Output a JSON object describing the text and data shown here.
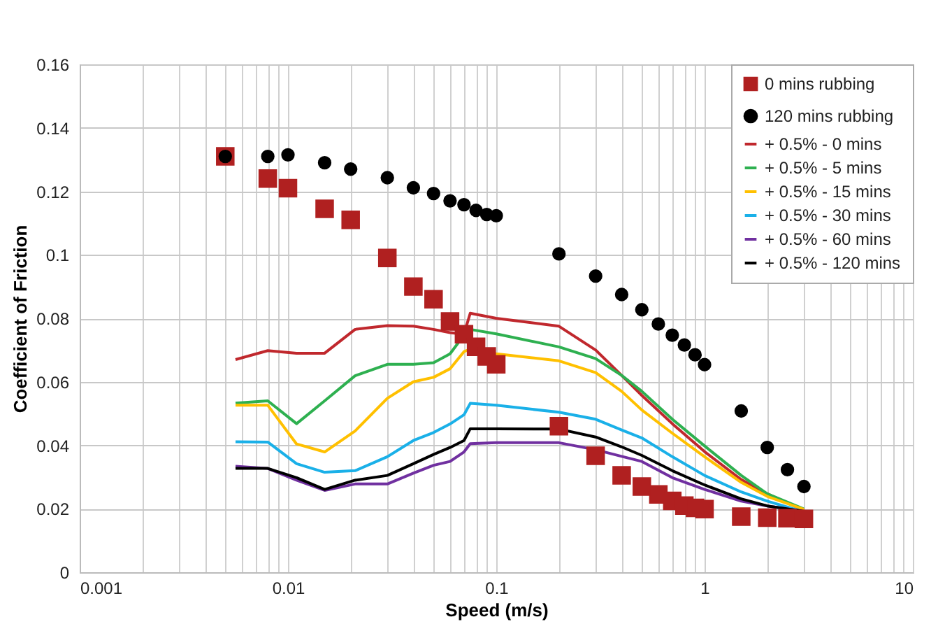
{
  "chart_data": {
    "type": "line",
    "xlabel": "Speed (m/s)",
    "ylabel": "Coefficient of Friction",
    "log": "x",
    "grid": true,
    "legend": "top right",
    "xlim": [
      0.001,
      10
    ],
    "xticks": [
      0.001,
      0.01,
      0.1,
      1,
      10
    ],
    "ylim": [
      0,
      0.16
    ],
    "yticks": [
      0,
      0.02,
      0.04,
      0.06,
      0.08,
      0.1,
      0.12,
      0.14,
      0.16
    ],
    "series": [
      {
        "name": "0 mins rubbing",
        "type": "scatter",
        "marker": "square",
        "color": "#b02020",
        "x": [
          0.005,
          0.008,
          0.01,
          0.015,
          0.02,
          0.03,
          0.04,
          0.05,
          0.06,
          0.07,
          0.08,
          0.09,
          0.1,
          0.2,
          0.3,
          0.4,
          0.5,
          0.6,
          0.7,
          0.8,
          0.9,
          1,
          1.5,
          2,
          2.5,
          3
        ],
        "values": [
          0.131,
          0.124,
          0.121,
          0.1145,
          0.111,
          0.099,
          0.09,
          0.086,
          0.079,
          0.075,
          0.071,
          0.068,
          0.0655,
          0.046,
          0.0367,
          0.0305,
          0.027,
          0.0245,
          0.0225,
          0.021,
          0.0203,
          0.0199,
          0.0175,
          0.0172,
          0.017,
          0.0168
        ]
      },
      {
        "name": "120 mins rubbing",
        "type": "scatter",
        "marker": "circle",
        "color": "#000000",
        "x": [
          0.005,
          0.008,
          0.01,
          0.015,
          0.02,
          0.03,
          0.04,
          0.05,
          0.06,
          0.07,
          0.08,
          0.09,
          0.1,
          0.2,
          0.3,
          0.4,
          0.5,
          0.6,
          0.7,
          0.8,
          0.9,
          1,
          1.5,
          2,
          2.5,
          3
        ],
        "values": [
          0.131,
          0.131,
          0.1315,
          0.129,
          0.127,
          0.1243,
          0.1211,
          0.1193,
          0.117,
          0.1158,
          0.114,
          0.1127,
          0.1123,
          0.1003,
          0.0933,
          0.0875,
          0.0827,
          0.0782,
          0.0747,
          0.0716,
          0.0685,
          0.0654,
          0.0508,
          0.0393,
          0.0323,
          0.027
        ]
      },
      {
        "name": "+ 0.5% - 0 mins",
        "marker": "none",
        "color": "#c0282d",
        "x": [
          0.0056,
          0.008,
          0.011,
          0.015,
          0.021,
          0.03,
          0.04,
          0.05,
          0.06,
          0.07,
          0.075,
          0.1,
          0.2,
          0.3,
          0.4,
          0.5,
          0.7,
          1,
          1.5,
          2,
          3
        ],
        "values": [
          0.067,
          0.0698,
          0.069,
          0.069,
          0.0765,
          0.0777,
          0.0775,
          0.0765,
          0.0755,
          0.075,
          0.0816,
          0.08,
          0.0775,
          0.07,
          0.062,
          0.0557,
          0.0468,
          0.038,
          0.0292,
          0.0247,
          0.0195
        ]
      },
      {
        "name": "+ 0.5% - 5 mins",
        "marker": "none",
        "color": "#2eb050",
        "x": [
          0.0056,
          0.008,
          0.011,
          0.015,
          0.021,
          0.03,
          0.04,
          0.05,
          0.06,
          0.07,
          0.075,
          0.1,
          0.2,
          0.3,
          0.4,
          0.5,
          0.7,
          1,
          1.5,
          2,
          3
        ],
        "values": [
          0.0533,
          0.054,
          0.0468,
          0.054,
          0.0619,
          0.0655,
          0.0655,
          0.066,
          0.0688,
          0.0747,
          0.0765,
          0.0751,
          0.071,
          0.0673,
          0.062,
          0.057,
          0.0482,
          0.0398,
          0.0305,
          0.0247,
          0.0199
        ]
      },
      {
        "name": "+ 0.5% - 15 mins",
        "marker": "none",
        "color": "#ffc000",
        "x": [
          0.0056,
          0.008,
          0.011,
          0.015,
          0.021,
          0.03,
          0.04,
          0.05,
          0.06,
          0.07,
          0.075,
          0.1,
          0.2,
          0.3,
          0.4,
          0.5,
          0.7,
          1,
          1.5,
          2,
          3
        ],
        "values": [
          0.0526,
          0.0526,
          0.0404,
          0.0379,
          0.0445,
          0.0548,
          0.06,
          0.0614,
          0.0641,
          0.0695,
          0.0703,
          0.0688,
          0.0666,
          0.0629,
          0.057,
          0.0511,
          0.0438,
          0.0364,
          0.0283,
          0.0239,
          0.0198
        ]
      },
      {
        "name": "+ 0.5% - 30 mins",
        "marker": "none",
        "color": "#1ab0e8",
        "x": [
          0.0056,
          0.008,
          0.011,
          0.015,
          0.021,
          0.03,
          0.04,
          0.05,
          0.06,
          0.07,
          0.075,
          0.1,
          0.2,
          0.3,
          0.4,
          0.5,
          0.7,
          1,
          1.5,
          2,
          3
        ],
        "values": [
          0.0411,
          0.041,
          0.0342,
          0.0315,
          0.032,
          0.0364,
          0.0415,
          0.044,
          0.0467,
          0.0496,
          0.0532,
          0.0526,
          0.0504,
          0.0482,
          0.0448,
          0.0423,
          0.0364,
          0.0305,
          0.0253,
          0.0224,
          0.019
        ]
      },
      {
        "name": "+ 0.5% - 60 mins",
        "marker": "none",
        "color": "#7030a0",
        "x": [
          0.0056,
          0.008,
          0.011,
          0.015,
          0.021,
          0.03,
          0.04,
          0.05,
          0.06,
          0.07,
          0.075,
          0.1,
          0.2,
          0.3,
          0.4,
          0.5,
          0.7,
          1,
          1.5,
          2,
          3
        ],
        "values": [
          0.0334,
          0.0327,
          0.029,
          0.0258,
          0.0278,
          0.0278,
          0.0312,
          0.0337,
          0.0349,
          0.0379,
          0.0405,
          0.0408,
          0.0408,
          0.0386,
          0.0365,
          0.0349,
          0.0298,
          0.0261,
          0.0224,
          0.0209,
          0.0192
        ]
      },
      {
        "name": "+ 0.5% - 120 mins",
        "marker": "none",
        "color": "#000000",
        "x": [
          0.0056,
          0.008,
          0.011,
          0.015,
          0.021,
          0.03,
          0.04,
          0.05,
          0.06,
          0.07,
          0.075,
          0.1,
          0.2,
          0.3,
          0.4,
          0.5,
          0.7,
          1,
          1.5,
          2,
          3
        ],
        "values": [
          0.0327,
          0.0327,
          0.0298,
          0.0261,
          0.029,
          0.0305,
          0.0342,
          0.0371,
          0.0393,
          0.0415,
          0.0452,
          0.0452,
          0.0451,
          0.0426,
          0.0395,
          0.0368,
          0.032,
          0.0275,
          0.0231,
          0.0209,
          0.0192
        ]
      }
    ]
  }
}
